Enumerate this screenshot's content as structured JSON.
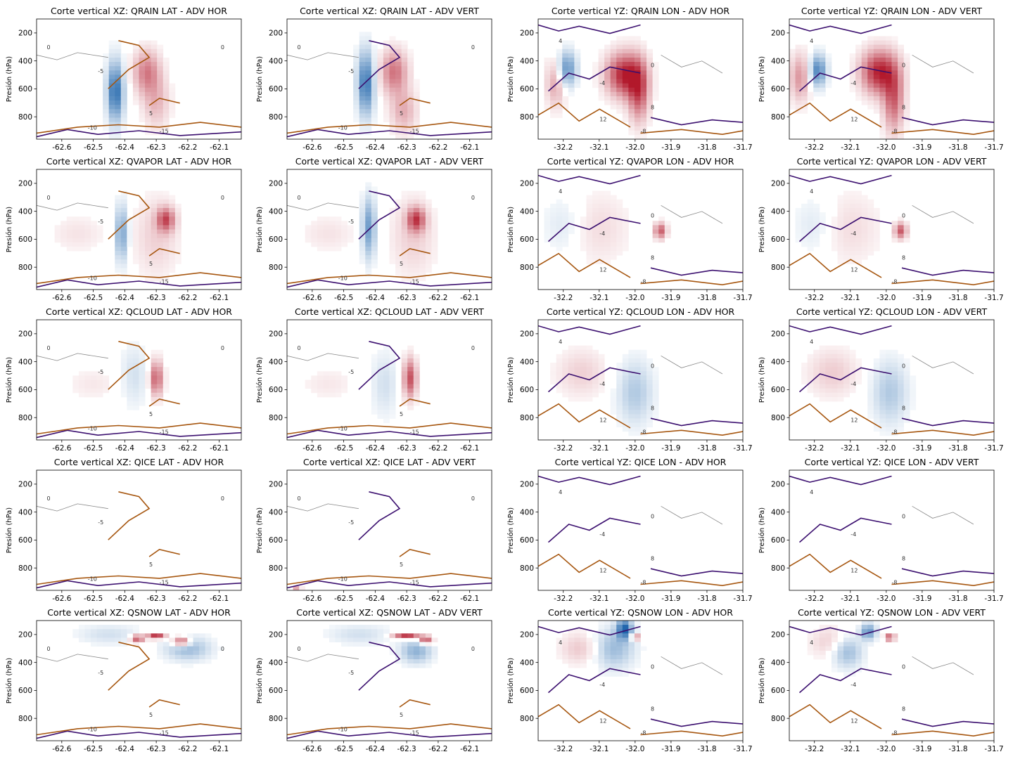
{
  "chart_data": {
    "type": "heatmap",
    "rows": [
      "QRAIN",
      "QVAPOR",
      "QCLOUD",
      "QICE",
      "QSNOW"
    ],
    "columns": [
      {
        "label": "LAT - ADV HOR",
        "section": "XZ",
        "xdomain": [
          -62.68,
          -62.03
        ],
        "xticks": [
          -62.6,
          -62.5,
          -62.4,
          -62.3,
          -62.2,
          -62.1
        ]
      },
      {
        "label": "LAT - ADV VERT",
        "section": "XZ",
        "xdomain": [
          -62.68,
          -62.03
        ],
        "xticks": [
          -62.6,
          -62.5,
          -62.4,
          -62.3,
          -62.2,
          -62.1
        ]
      },
      {
        "label": "LON - ADV HOR",
        "section": "YZ",
        "xdomain": [
          -32.27,
          -31.7
        ],
        "xticks": [
          -32.2,
          -32.1,
          -32.0,
          -31.9,
          -31.8,
          -31.7
        ]
      },
      {
        "label": "LON - ADV VERT",
        "section": "YZ",
        "xdomain": [
          -32.27,
          -31.7
        ],
        "xticks": [
          -32.2,
          -32.1,
          -32.0,
          -31.9,
          -31.8,
          -31.7
        ]
      }
    ],
    "ylabel": "Presión (hPa)",
    "ylim": [
      960,
      100
    ],
    "yticks": [
      200,
      400,
      600,
      800
    ],
    "contour_labels": [
      "0",
      "-5",
      "5",
      "-10",
      "-15",
      "4",
      "-4",
      "8",
      "-8",
      "12"
    ],
    "colormap": {
      "negative": "#2166ac",
      "positive": "#b2182b",
      "neutral": "#ffffff"
    },
    "contour_colors": {
      "negative": "#3b0f6f",
      "positive": "#a6560f",
      "zero": "#888888"
    },
    "panels": [
      {
        "title": "Corte vertical XZ: QRAIN LAT - ADV HOR",
        "blobs": [
          {
            "x": -62.43,
            "y": 620,
            "sx": 0.018,
            "sy": 150,
            "v": -0.95
          },
          {
            "x": -62.33,
            "y": 480,
            "sx": 0.03,
            "sy": 110,
            "v": 0.55
          },
          {
            "x": -62.3,
            "y": 700,
            "sx": 0.03,
            "sy": 130,
            "v": 0.3
          }
        ]
      },
      {
        "title": "Corte vertical XZ: QRAIN LAT - ADV VERT",
        "blobs": [
          {
            "x": -62.43,
            "y": 560,
            "sx": 0.018,
            "sy": 160,
            "v": -0.9
          },
          {
            "x": -62.34,
            "y": 480,
            "sx": 0.03,
            "sy": 110,
            "v": 0.6
          },
          {
            "x": -62.31,
            "y": 760,
            "sx": 0.03,
            "sy": 110,
            "v": 0.35
          }
        ]
      },
      {
        "title": "Corte vertical YZ: QRAIN LON - ADV HOR",
        "blobs": [
          {
            "x": -32.19,
            "y": 460,
            "sx": 0.018,
            "sy": 90,
            "v": -0.75
          },
          {
            "x": -32.03,
            "y": 500,
            "sx": 0.035,
            "sy": 110,
            "v": 0.95
          },
          {
            "x": -31.99,
            "y": 620,
            "sx": 0.02,
            "sy": 150,
            "v": 0.7
          },
          {
            "x": -32.22,
            "y": 560,
            "sx": 0.02,
            "sy": 120,
            "v": 0.4
          }
        ]
      },
      {
        "title": "Corte vertical YZ: QRAIN LON - ADV VERT",
        "blobs": [
          {
            "x": -32.19,
            "y": 470,
            "sx": 0.016,
            "sy": 80,
            "v": -0.8
          },
          {
            "x": -32.02,
            "y": 480,
            "sx": 0.035,
            "sy": 110,
            "v": 0.95
          },
          {
            "x": -31.98,
            "y": 680,
            "sx": 0.02,
            "sy": 160,
            "v": 0.65
          },
          {
            "x": -32.24,
            "y": 520,
            "sx": 0.02,
            "sy": 120,
            "v": 0.45
          }
        ]
      },
      {
        "title": "Corte vertical XZ: QVAPOR LAT - ADV HOR",
        "blobs": [
          {
            "x": -62.41,
            "y": 560,
            "sx": 0.015,
            "sy": 140,
            "v": -0.6
          },
          {
            "x": -62.27,
            "y": 460,
            "sx": 0.02,
            "sy": 60,
            "v": 0.7
          },
          {
            "x": -62.3,
            "y": 580,
            "sx": 0.05,
            "sy": 200,
            "v": 0.2
          },
          {
            "x": -62.55,
            "y": 560,
            "sx": 0.06,
            "sy": 90,
            "v": 0.12
          }
        ]
      },
      {
        "title": "Corte vertical XZ: QVAPOR LAT - ADV VERT",
        "blobs": [
          {
            "x": -62.42,
            "y": 520,
            "sx": 0.015,
            "sy": 150,
            "v": -0.65
          },
          {
            "x": -62.27,
            "y": 460,
            "sx": 0.02,
            "sy": 60,
            "v": 0.75
          },
          {
            "x": -62.28,
            "y": 580,
            "sx": 0.05,
            "sy": 200,
            "v": 0.2
          },
          {
            "x": -62.55,
            "y": 560,
            "sx": 0.06,
            "sy": 90,
            "v": 0.12
          }
        ]
      },
      {
        "title": "Corte vertical YZ: QVAPOR LON - ADV HOR",
        "blobs": [
          {
            "x": -31.93,
            "y": 540,
            "sx": 0.012,
            "sy": 40,
            "v": 0.7
          },
          {
            "x": -32.1,
            "y": 520,
            "sx": 0.06,
            "sy": 180,
            "v": 0.15
          },
          {
            "x": -32.2,
            "y": 500,
            "sx": 0.04,
            "sy": 140,
            "v": -0.15
          }
        ]
      },
      {
        "title": "Corte vertical YZ: QVAPOR LON - ADV VERT",
        "blobs": [
          {
            "x": -31.96,
            "y": 540,
            "sx": 0.012,
            "sy": 40,
            "v": 0.7
          },
          {
            "x": -32.1,
            "y": 520,
            "sx": 0.06,
            "sy": 180,
            "v": 0.15
          },
          {
            "x": -32.2,
            "y": 500,
            "sx": 0.04,
            "sy": 140,
            "v": -0.15
          }
        ]
      },
      {
        "title": "Corte vertical XZ: QCLOUD LAT - ADV HOR",
        "blobs": [
          {
            "x": -62.3,
            "y": 520,
            "sx": 0.015,
            "sy": 90,
            "v": 0.7
          },
          {
            "x": -62.37,
            "y": 500,
            "sx": 0.03,
            "sy": 150,
            "v": -0.2
          },
          {
            "x": -62.5,
            "y": 560,
            "sx": 0.06,
            "sy": 80,
            "v": 0.1
          }
        ]
      },
      {
        "title": "Corte vertical XZ: QCLOUD LAT - ADV VERT",
        "blobs": [
          {
            "x": -62.29,
            "y": 520,
            "sx": 0.015,
            "sy": 100,
            "v": 0.75
          },
          {
            "x": -62.37,
            "y": 560,
            "sx": 0.03,
            "sy": 160,
            "v": -0.2
          },
          {
            "x": -62.55,
            "y": 560,
            "sx": 0.06,
            "sy": 80,
            "v": 0.1
          }
        ]
      },
      {
        "title": "Corte vertical YZ: QCLOUD LON - ADV HOR",
        "blobs": [
          {
            "x": -32.0,
            "y": 620,
            "sx": 0.035,
            "sy": 160,
            "v": -0.35
          },
          {
            "x": -32.15,
            "y": 480,
            "sx": 0.05,
            "sy": 120,
            "v": 0.2
          }
        ]
      },
      {
        "title": "Corte vertical YZ: QCLOUD LON - ADV VERT",
        "blobs": [
          {
            "x": -31.99,
            "y": 620,
            "sx": 0.035,
            "sy": 160,
            "v": -0.35
          },
          {
            "x": -32.15,
            "y": 480,
            "sx": 0.05,
            "sy": 120,
            "v": 0.22
          }
        ]
      },
      {
        "title": "Corte vertical XZ: QICE LAT - ADV HOR",
        "blobs": [
          {
            "x": -62.3,
            "y": 200,
            "sx": 0.05,
            "sy": 60,
            "v": 0.05
          }
        ]
      },
      {
        "title": "Corte vertical XZ: QICE LAT - ADV VERT",
        "blobs": [
          {
            "x": -62.65,
            "y": 960,
            "sx": 0.01,
            "sy": 20,
            "v": 0.5
          }
        ]
      },
      {
        "title": "Corte vertical YZ: QICE LON - ADV HOR",
        "blobs": [
          {
            "x": -32.1,
            "y": 200,
            "sx": 0.05,
            "sy": 60,
            "v": 0.05
          }
        ]
      },
      {
        "title": "Corte vertical YZ: QICE LON - ADV VERT",
        "blobs": [
          {
            "x": -32.1,
            "y": 200,
            "sx": 0.05,
            "sy": 60,
            "v": 0.05
          }
        ]
      },
      {
        "title": "Corte vertical XZ: QSNOW LAT - ADV HOR",
        "blobs": [
          {
            "x": -62.3,
            "y": 210,
            "sx": 0.02,
            "sy": 15,
            "v": 0.95
          },
          {
            "x": -62.22,
            "y": 250,
            "sx": 0.02,
            "sy": 25,
            "v": 0.85
          },
          {
            "x": -62.36,
            "y": 230,
            "sx": 0.015,
            "sy": 20,
            "v": 0.8
          },
          {
            "x": -62.2,
            "y": 300,
            "sx": 0.05,
            "sy": 60,
            "v": -0.45
          },
          {
            "x": -62.45,
            "y": 200,
            "sx": 0.07,
            "sy": 50,
            "v": -0.2
          }
        ]
      },
      {
        "title": "Corte vertical XZ: QSNOW LAT - ADV VERT",
        "blobs": [
          {
            "x": -62.3,
            "y": 210,
            "sx": 0.03,
            "sy": 15,
            "v": 0.95
          },
          {
            "x": -62.24,
            "y": 240,
            "sx": 0.015,
            "sy": 20,
            "v": 0.85
          },
          {
            "x": -62.27,
            "y": 320,
            "sx": 0.035,
            "sy": 60,
            "v": -0.5
          },
          {
            "x": -62.45,
            "y": 200,
            "sx": 0.07,
            "sy": 50,
            "v": -0.2
          }
        ]
      },
      {
        "title": "Corte vertical YZ: QSNOW LON - ADV HOR",
        "blobs": [
          {
            "x": -32.03,
            "y": 160,
            "sx": 0.015,
            "sy": 50,
            "v": -0.95
          },
          {
            "x": -32.06,
            "y": 300,
            "sx": 0.04,
            "sy": 100,
            "v": -0.45
          },
          {
            "x": -32.0,
            "y": 220,
            "sx": 0.01,
            "sy": 15,
            "v": 0.75
          },
          {
            "x": -32.15,
            "y": 300,
            "sx": 0.04,
            "sy": 80,
            "v": 0.25
          }
        ]
      },
      {
        "title": "Corte vertical YZ: QSNOW LON - ADV VERT",
        "blobs": [
          {
            "x": -32.05,
            "y": 180,
            "sx": 0.015,
            "sy": 40,
            "v": -0.7
          },
          {
            "x": -32.11,
            "y": 320,
            "sx": 0.03,
            "sy": 80,
            "v": -0.5
          },
          {
            "x": -31.99,
            "y": 220,
            "sx": 0.01,
            "sy": 15,
            "v": 0.85
          },
          {
            "x": -32.15,
            "y": 260,
            "sx": 0.04,
            "sy": 80,
            "v": 0.25
          }
        ]
      }
    ]
  }
}
